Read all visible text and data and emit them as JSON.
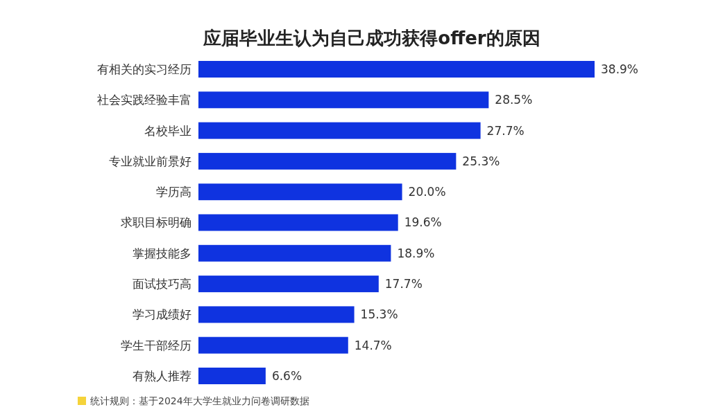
{
  "chart_data": {
    "type": "bar",
    "orientation": "horizontal",
    "title": "应届毕业生认为自己成功获得offer的原因",
    "categories": [
      "有相关的实习经历",
      "社会实践经验丰富",
      "名校毕业",
      "专业就业前景好",
      "学历高",
      "求职目标明确",
      "掌握技能多",
      "面试技巧高",
      "学习成绩好",
      "学生干部经历",
      "有熟人推荐"
    ],
    "values": [
      38.9,
      28.5,
      27.7,
      25.3,
      20.0,
      19.6,
      18.9,
      17.7,
      15.3,
      14.7,
      6.6
    ],
    "value_labels": [
      "38.9%",
      "28.5%",
      "27.7%",
      "25.3%",
      "20.0%",
      "19.6%",
      "18.9%",
      "17.7%",
      "15.3%",
      "14.7%",
      "6.6%"
    ],
    "color": "#0f33e0",
    "annotations": [
      "统计规则：基于2024年大学生就业力问卷调研数据"
    ]
  }
}
